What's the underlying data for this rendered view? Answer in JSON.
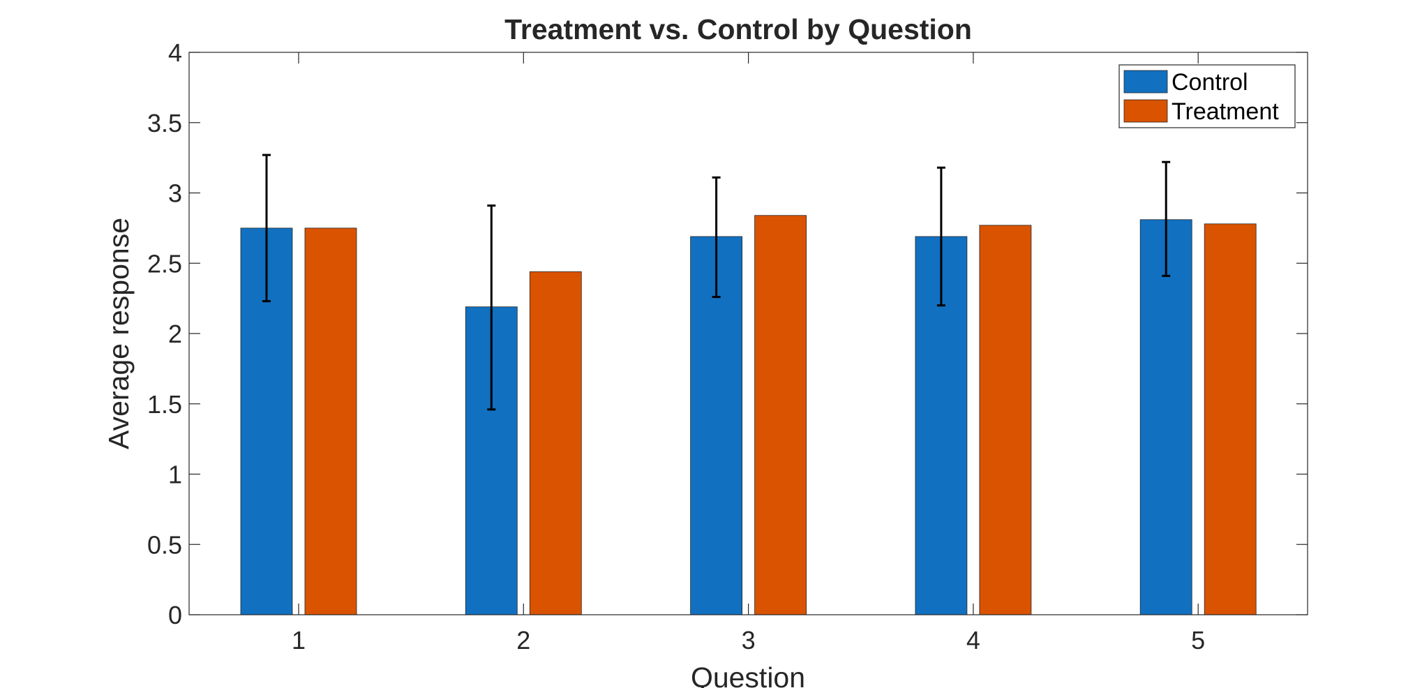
{
  "chart_data": {
    "type": "bar",
    "title": "Treatment vs. Control by Question",
    "xlabel": "Question",
    "ylabel": "Average response",
    "categories": [
      "1",
      "2",
      "3",
      "4",
      "5"
    ],
    "ylim": [
      0,
      4
    ],
    "yticks": [
      "0",
      "0.5",
      "1",
      "1.5",
      "2",
      "2.5",
      "3",
      "3.5",
      "4"
    ],
    "grid": false,
    "legend_position": "top-right",
    "series": [
      {
        "name": "Control",
        "color": "#1170C0",
        "values": [
          2.75,
          2.19,
          2.69,
          2.69,
          2.81
        ],
        "error_low": [
          2.23,
          1.46,
          2.26,
          2.2,
          2.41
        ],
        "error_high": [
          3.27,
          2.91,
          3.11,
          3.18,
          3.22
        ]
      },
      {
        "name": "Treatment",
        "color": "#D95300",
        "values": [
          2.75,
          2.44,
          2.84,
          2.77,
          2.78
        ]
      }
    ]
  }
}
